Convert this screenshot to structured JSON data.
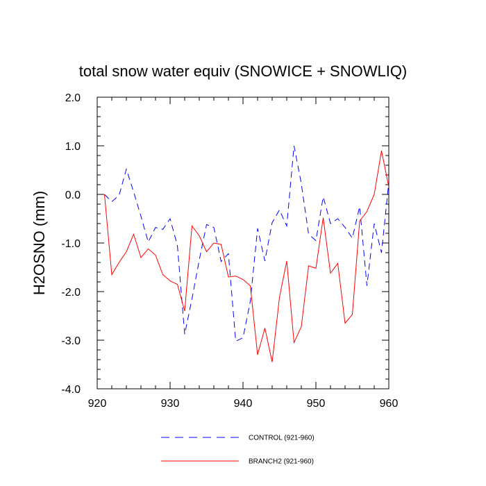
{
  "chart_data": {
    "type": "line",
    "title": "total snow water equiv (SNOWICE + SNOWLIQ)",
    "xlabel": "",
    "ylabel": "H2OSNO  (mm)",
    "xlim": [
      920,
      960
    ],
    "ylim": [
      -4.0,
      2.0
    ],
    "x_ticks": [
      920,
      930,
      940,
      950,
      960
    ],
    "y_ticks": [
      -4.0,
      -3.0,
      -2.0,
      -1.0,
      0.0,
      1.0,
      2.0
    ],
    "x_tick_labels": [
      "920",
      "930",
      "940",
      "950",
      "960"
    ],
    "y_tick_labels": [
      "-4.0",
      "-3.0",
      "-2.0",
      "-1.0",
      "0.0",
      "1.0",
      "2.0"
    ],
    "grid": false,
    "legend_placement": "bottom-center",
    "x": [
      921,
      922,
      923,
      924,
      925,
      926,
      927,
      928,
      929,
      930,
      931,
      932,
      933,
      934,
      935,
      936,
      937,
      938,
      939,
      940,
      941,
      942,
      943,
      944,
      945,
      946,
      947,
      948,
      949,
      950,
      951,
      952,
      953,
      954,
      955,
      956,
      957,
      958,
      959,
      960
    ],
    "series": [
      {
        "name": "CONTROL (921-960)",
        "color": "#0000ff",
        "dash": "dashed",
        "values": [
          0.0,
          -0.15,
          -0.02,
          0.52,
          0.05,
          -0.45,
          -0.98,
          -0.68,
          -0.72,
          -0.5,
          -1.05,
          -2.88,
          -2.15,
          -1.35,
          -0.62,
          -0.68,
          -1.38,
          -1.22,
          -3.02,
          -2.95,
          -2.2,
          -0.7,
          -1.37,
          -0.58,
          -0.32,
          -0.65,
          1.0,
          0.22,
          -0.82,
          -0.95,
          -0.05,
          -0.6,
          -0.5,
          -0.68,
          -0.9,
          -0.25,
          -1.88,
          -0.6,
          -1.2,
          0.25
        ]
      },
      {
        "name": "BRANCH2 (921-960)",
        "color": "#ff0000",
        "dash": "solid",
        "values": [
          0.0,
          -1.65,
          -1.4,
          -1.18,
          -0.82,
          -1.3,
          -1.12,
          -1.25,
          -1.65,
          -1.78,
          -1.85,
          -2.4,
          -0.65,
          -0.85,
          -1.18,
          -1.0,
          -1.03,
          -1.7,
          -1.68,
          -1.75,
          -1.88,
          -3.3,
          -2.75,
          -3.45,
          -2.12,
          -1.37,
          -3.05,
          -2.72,
          -1.47,
          -1.52,
          -0.48,
          -1.62,
          -1.42,
          -2.65,
          -2.47,
          -0.55,
          -0.35,
          0.0,
          0.9,
          0.15
        ]
      }
    ]
  }
}
